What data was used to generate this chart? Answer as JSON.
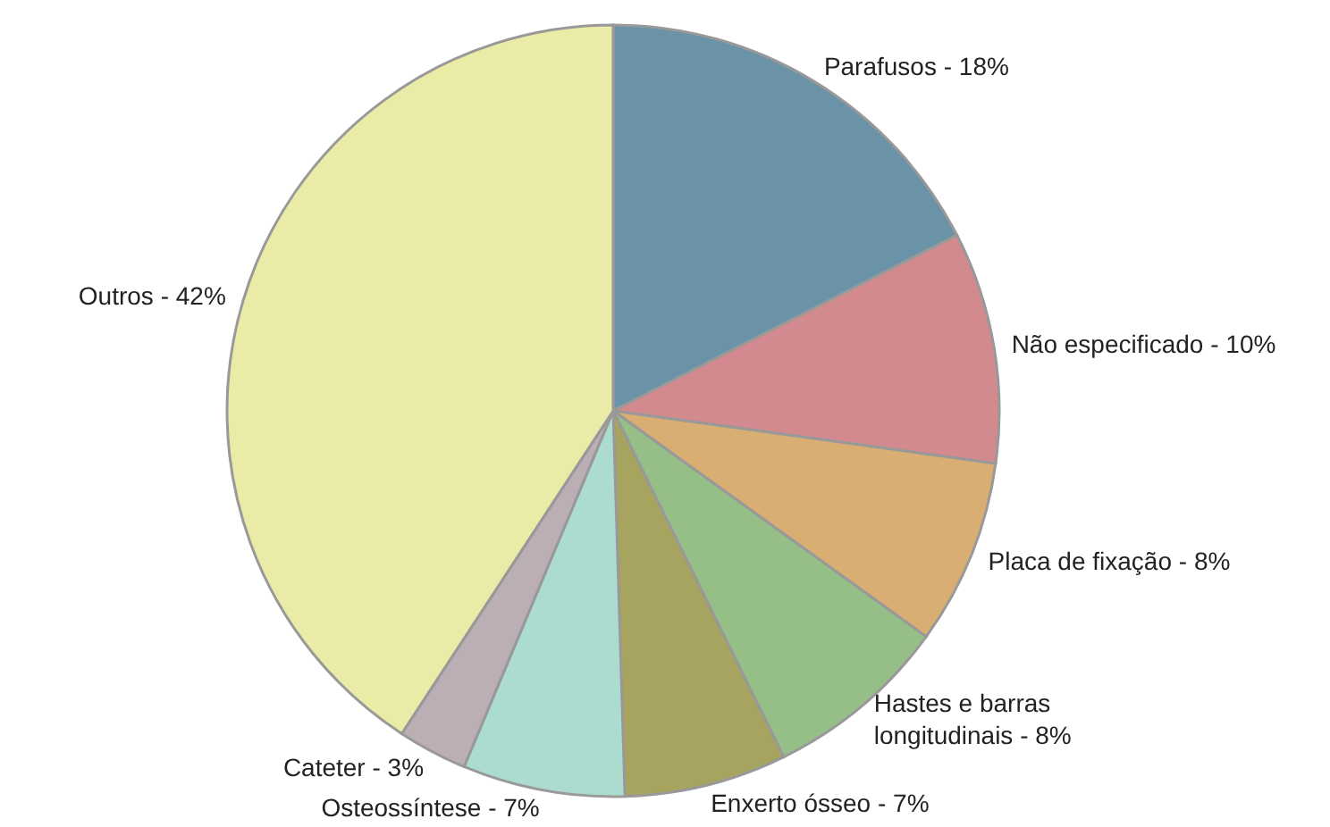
{
  "chart_data": {
    "type": "pie",
    "categories": [
      "Parafusos",
      "Não especificado",
      "Placa de fixação",
      "Hastes e barras longitudinais",
      "Enxerto ósseo",
      "Osteossíntese",
      "Cateter",
      "Outros"
    ],
    "values": [
      18,
      10,
      8,
      8,
      7,
      7,
      3,
      42
    ],
    "value_labels": [
      "18%",
      "10%",
      "8%",
      "8%",
      "7%",
      "7%",
      "3%",
      "42%"
    ],
    "colors": [
      "#6a93a8",
      "#d38a8f",
      "#d9ae72",
      "#96bf87",
      "#a6a45f",
      "#acdccf",
      "#bbaeb5",
      "#ebeba8"
    ],
    "legend": false
  }
}
